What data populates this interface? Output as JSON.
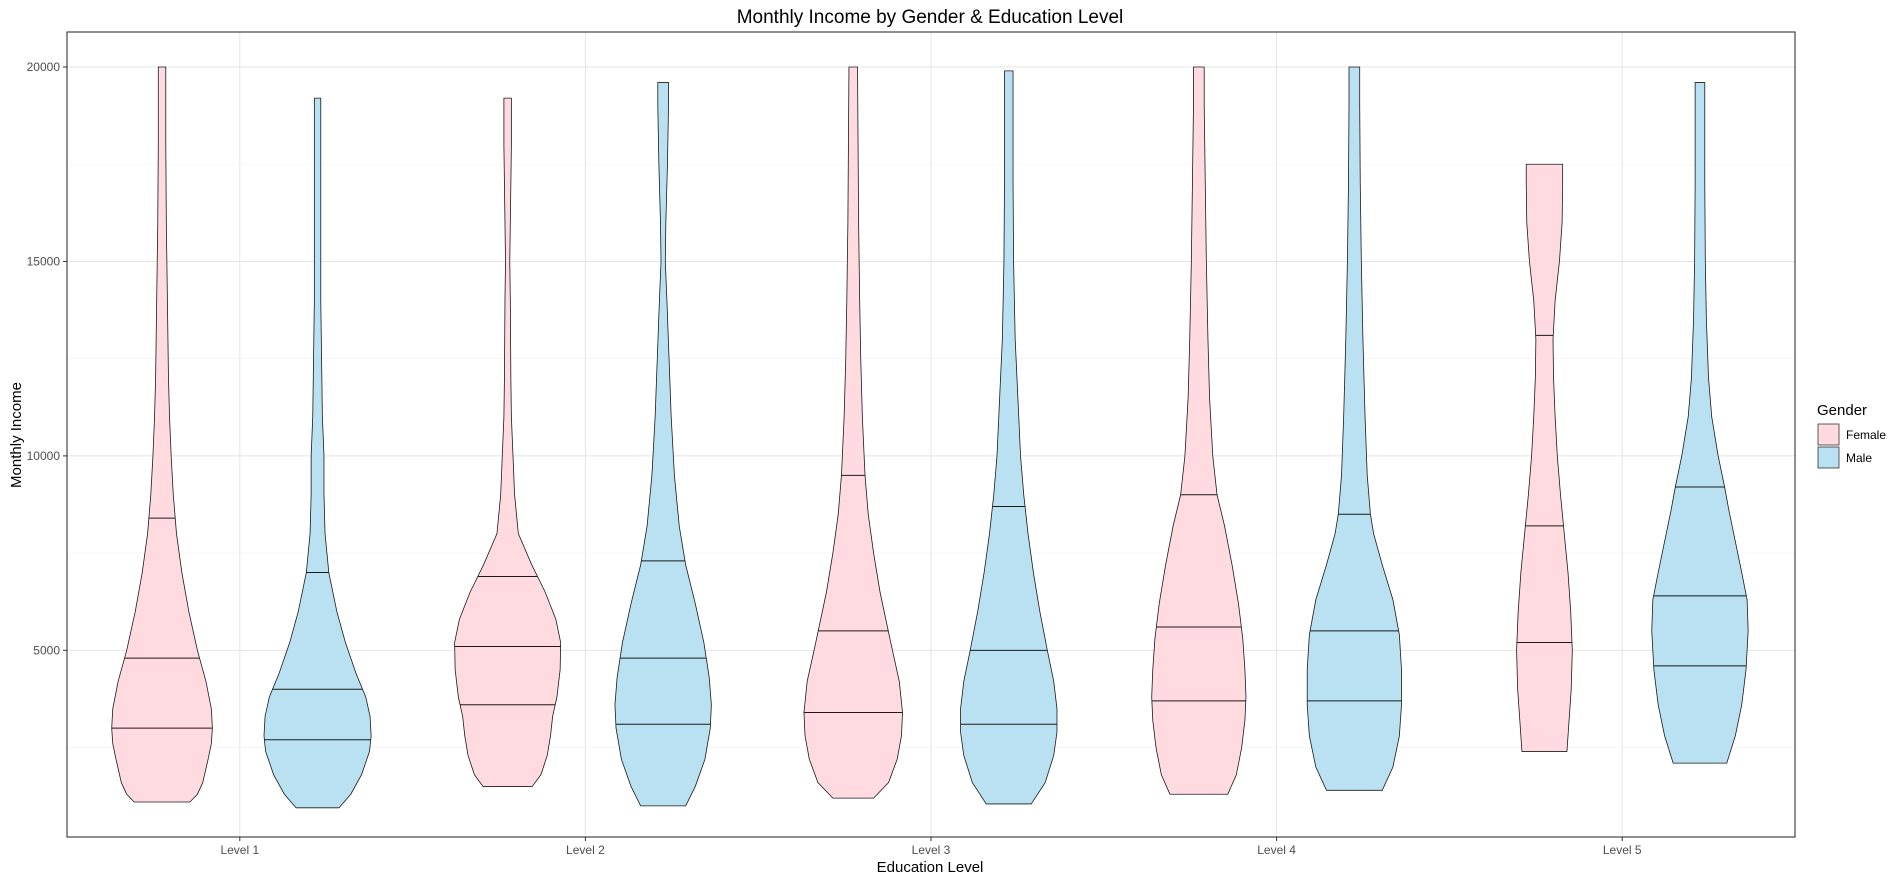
{
  "chart_data": {
    "type": "violin",
    "title": "Monthly Income by Gender & Education Level",
    "xlabel": "Education Level",
    "ylabel": "Monthly Income",
    "categories": [
      "Level 1",
      "Level 2",
      "Level 3",
      "Level 4",
      "Level 5"
    ],
    "ylim": [
      200,
      20900
    ],
    "yticks": [
      5000,
      10000,
      15000,
      20000
    ],
    "y_tick_labels": [
      "5000",
      "10000",
      "15000",
      "20000"
    ],
    "grid": true,
    "legend": {
      "title": "Gender",
      "position": "right",
      "entries": [
        {
          "label": "Female",
          "color": "#FFDAE1"
        },
        {
          "label": "Male",
          "color": "#B9E1F2"
        }
      ]
    },
    "series": [
      {
        "name": "Female",
        "color": "#FFDAE1",
        "violins": [
          {
            "category": "Level 1",
            "min": 1100,
            "max": 20000,
            "quartiles": [
              3000,
              4800,
              8400
            ],
            "profile": [
              [
                1100,
                0.52
              ],
              [
                1300,
                0.66
              ],
              [
                1600,
                0.76
              ],
              [
                2200,
                0.86
              ],
              [
                2600,
                0.92
              ],
              [
                3000,
                0.94
              ],
              [
                3500,
                0.92
              ],
              [
                4200,
                0.82
              ],
              [
                5000,
                0.66
              ],
              [
                6000,
                0.5
              ],
              [
                7000,
                0.37
              ],
              [
                8000,
                0.27
              ],
              [
                9000,
                0.21
              ],
              [
                10000,
                0.17
              ],
              [
                11000,
                0.14
              ],
              [
                12000,
                0.12
              ],
              [
                14000,
                0.1
              ],
              [
                16000,
                0.08
              ],
              [
                18000,
                0.07
              ],
              [
                20000,
                0.07
              ]
            ]
          },
          {
            "category": "Level 2",
            "min": 1500,
            "max": 19200,
            "quartiles": [
              3600,
              5100,
              6900
            ],
            "profile": [
              [
                1500,
                0.46
              ],
              [
                1800,
                0.62
              ],
              [
                2300,
                0.74
              ],
              [
                2800,
                0.8
              ],
              [
                3300,
                0.84
              ],
              [
                3800,
                0.92
              ],
              [
                4500,
                0.98
              ],
              [
                5200,
                0.99
              ],
              [
                5800,
                0.9
              ],
              [
                6500,
                0.7
              ],
              [
                7200,
                0.45
              ],
              [
                8000,
                0.2
              ],
              [
                9000,
                0.13
              ],
              [
                10000,
                0.1
              ],
              [
                11000,
                0.07
              ],
              [
                12000,
                0.06
              ],
              [
                14000,
                0.05
              ],
              [
                15000,
                0.04
              ],
              [
                16000,
                0.05
              ],
              [
                18000,
                0.07
              ],
              [
                19200,
                0.07
              ]
            ]
          },
          {
            "category": "Level 3",
            "min": 1200,
            "max": 20000,
            "quartiles": [
              3400,
              5500,
              9500
            ],
            "profile": [
              [
                1200,
                0.38
              ],
              [
                1600,
                0.66
              ],
              [
                2200,
                0.82
              ],
              [
                2800,
                0.9
              ],
              [
                3400,
                0.92
              ],
              [
                4200,
                0.86
              ],
              [
                5200,
                0.7
              ],
              [
                6500,
                0.5
              ],
              [
                7500,
                0.38
              ],
              [
                8500,
                0.28
              ],
              [
                9500,
                0.22
              ],
              [
                11000,
                0.17
              ],
              [
                12500,
                0.14
              ],
              [
                14000,
                0.12
              ],
              [
                16000,
                0.1
              ],
              [
                18000,
                0.09
              ],
              [
                20000,
                0.08
              ]
            ]
          },
          {
            "category": "Level 4",
            "min": 1300,
            "max": 20000,
            "quartiles": [
              3700,
              5600,
              9000
            ],
            "profile": [
              [
                1300,
                0.54
              ],
              [
                1800,
                0.7
              ],
              [
                2500,
                0.8
              ],
              [
                3200,
                0.86
              ],
              [
                3800,
                0.88
              ],
              [
                4500,
                0.86
              ],
              [
                5300,
                0.82
              ],
              [
                6200,
                0.74
              ],
              [
                7200,
                0.62
              ],
              [
                8200,
                0.48
              ],
              [
                9000,
                0.34
              ],
              [
                10000,
                0.26
              ],
              [
                11500,
                0.2
              ],
              [
                13000,
                0.17
              ],
              [
                15000,
                0.14
              ],
              [
                17000,
                0.12
              ],
              [
                19000,
                0.1
              ],
              [
                20000,
                0.1
              ]
            ]
          },
          {
            "category": "Level 5",
            "min": 2400,
            "max": 17500,
            "quartiles": [
              5200,
              8200,
              13100
            ],
            "profile": [
              [
                2400,
                0.42
              ],
              [
                3200,
                0.46
              ],
              [
                4000,
                0.5
              ],
              [
                5000,
                0.52
              ],
              [
                6000,
                0.49
              ],
              [
                7000,
                0.44
              ],
              [
                8000,
                0.37
              ],
              [
                9000,
                0.3
              ],
              [
                10000,
                0.24
              ],
              [
                11000,
                0.2
              ],
              [
                12000,
                0.17
              ],
              [
                13000,
                0.16
              ],
              [
                14000,
                0.2
              ],
              [
                15000,
                0.28
              ],
              [
                16000,
                0.33
              ],
              [
                17000,
                0.34
              ],
              [
                17500,
                0.34
              ]
            ]
          }
        ]
      },
      {
        "name": "Male",
        "color": "#B9E1F2",
        "violins": [
          {
            "category": "Level 1",
            "min": 950,
            "max": 19200,
            "quartiles": [
              2700,
              4000,
              7000
            ],
            "profile": [
              [
                950,
                0.4
              ],
              [
                1300,
                0.62
              ],
              [
                1800,
                0.82
              ],
              [
                2400,
                0.97
              ],
              [
                2800,
                1.0
              ],
              [
                3300,
                0.98
              ],
              [
                3800,
                0.9
              ],
              [
                4400,
                0.72
              ],
              [
                5200,
                0.52
              ],
              [
                6000,
                0.36
              ],
              [
                7000,
                0.21
              ],
              [
                8000,
                0.14
              ],
              [
                9000,
                0.12
              ],
              [
                10000,
                0.12
              ],
              [
                11000,
                0.09
              ],
              [
                12000,
                0.08
              ],
              [
                14000,
                0.06
              ],
              [
                16000,
                0.06
              ],
              [
                18000,
                0.06
              ],
              [
                19200,
                0.06
              ]
            ]
          },
          {
            "category": "Level 2",
            "min": 1000,
            "max": 19600,
            "quartiles": [
              3100,
              4800,
              7300
            ],
            "profile": [
              [
                1000,
                0.42
              ],
              [
                1500,
                0.6
              ],
              [
                2200,
                0.78
              ],
              [
                3000,
                0.88
              ],
              [
                3600,
                0.9
              ],
              [
                4300,
                0.86
              ],
              [
                5200,
                0.76
              ],
              [
                6200,
                0.6
              ],
              [
                7200,
                0.42
              ],
              [
                8200,
                0.3
              ],
              [
                9500,
                0.21
              ],
              [
                11000,
                0.15
              ],
              [
                12500,
                0.11
              ],
              [
                14000,
                0.07
              ],
              [
                15000,
                0.04
              ],
              [
                16000,
                0.05
              ],
              [
                17500,
                0.08
              ],
              [
                19000,
                0.1
              ],
              [
                19600,
                0.1
              ]
            ]
          },
          {
            "category": "Level 3",
            "min": 1050,
            "max": 19900,
            "quartiles": [
              3100,
              5000,
              8700
            ],
            "profile": [
              [
                1050,
                0.42
              ],
              [
                1600,
                0.68
              ],
              [
                2300,
                0.84
              ],
              [
                2900,
                0.9
              ],
              [
                3500,
                0.9
              ],
              [
                4200,
                0.84
              ],
              [
                5000,
                0.72
              ],
              [
                6000,
                0.58
              ],
              [
                7000,
                0.46
              ],
              [
                8000,
                0.36
              ],
              [
                9000,
                0.28
              ],
              [
                10000,
                0.22
              ],
              [
                11500,
                0.17
              ],
              [
                13000,
                0.12
              ],
              [
                15000,
                0.09
              ],
              [
                17000,
                0.08
              ],
              [
                19000,
                0.08
              ],
              [
                19900,
                0.08
              ]
            ]
          },
          {
            "category": "Level 4",
            "min": 1400,
            "max": 20000,
            "quartiles": [
              3700,
              5500,
              8500
            ],
            "profile": [
              [
                1400,
                0.52
              ],
              [
                2000,
                0.72
              ],
              [
                2800,
                0.84
              ],
              [
                3600,
                0.88
              ],
              [
                4500,
                0.88
              ],
              [
                5400,
                0.84
              ],
              [
                6300,
                0.72
              ],
              [
                7200,
                0.52
              ],
              [
                8000,
                0.36
              ],
              [
                8500,
                0.3
              ],
              [
                9500,
                0.24
              ],
              [
                11000,
                0.2
              ],
              [
                13000,
                0.16
              ],
              [
                15000,
                0.13
              ],
              [
                17000,
                0.11
              ],
              [
                19000,
                0.1
              ],
              [
                20000,
                0.1
              ]
            ]
          },
          {
            "category": "Level 5",
            "min": 2100,
            "max": 19600,
            "quartiles": [
              4600,
              6400,
              9200
            ],
            "profile": [
              [
                2100,
                0.5
              ],
              [
                2800,
                0.66
              ],
              [
                3600,
                0.78
              ],
              [
                4500,
                0.86
              ],
              [
                5500,
                0.9
              ],
              [
                6300,
                0.88
              ],
              [
                7000,
                0.78
              ],
              [
                7800,
                0.66
              ],
              [
                8600,
                0.54
              ],
              [
                9200,
                0.46
              ],
              [
                10000,
                0.34
              ],
              [
                11000,
                0.22
              ],
              [
                12000,
                0.16
              ],
              [
                13500,
                0.12
              ],
              [
                15000,
                0.1
              ],
              [
                17000,
                0.09
              ],
              [
                19000,
                0.09
              ],
              [
                19600,
                0.09
              ]
            ]
          }
        ]
      }
    ]
  }
}
